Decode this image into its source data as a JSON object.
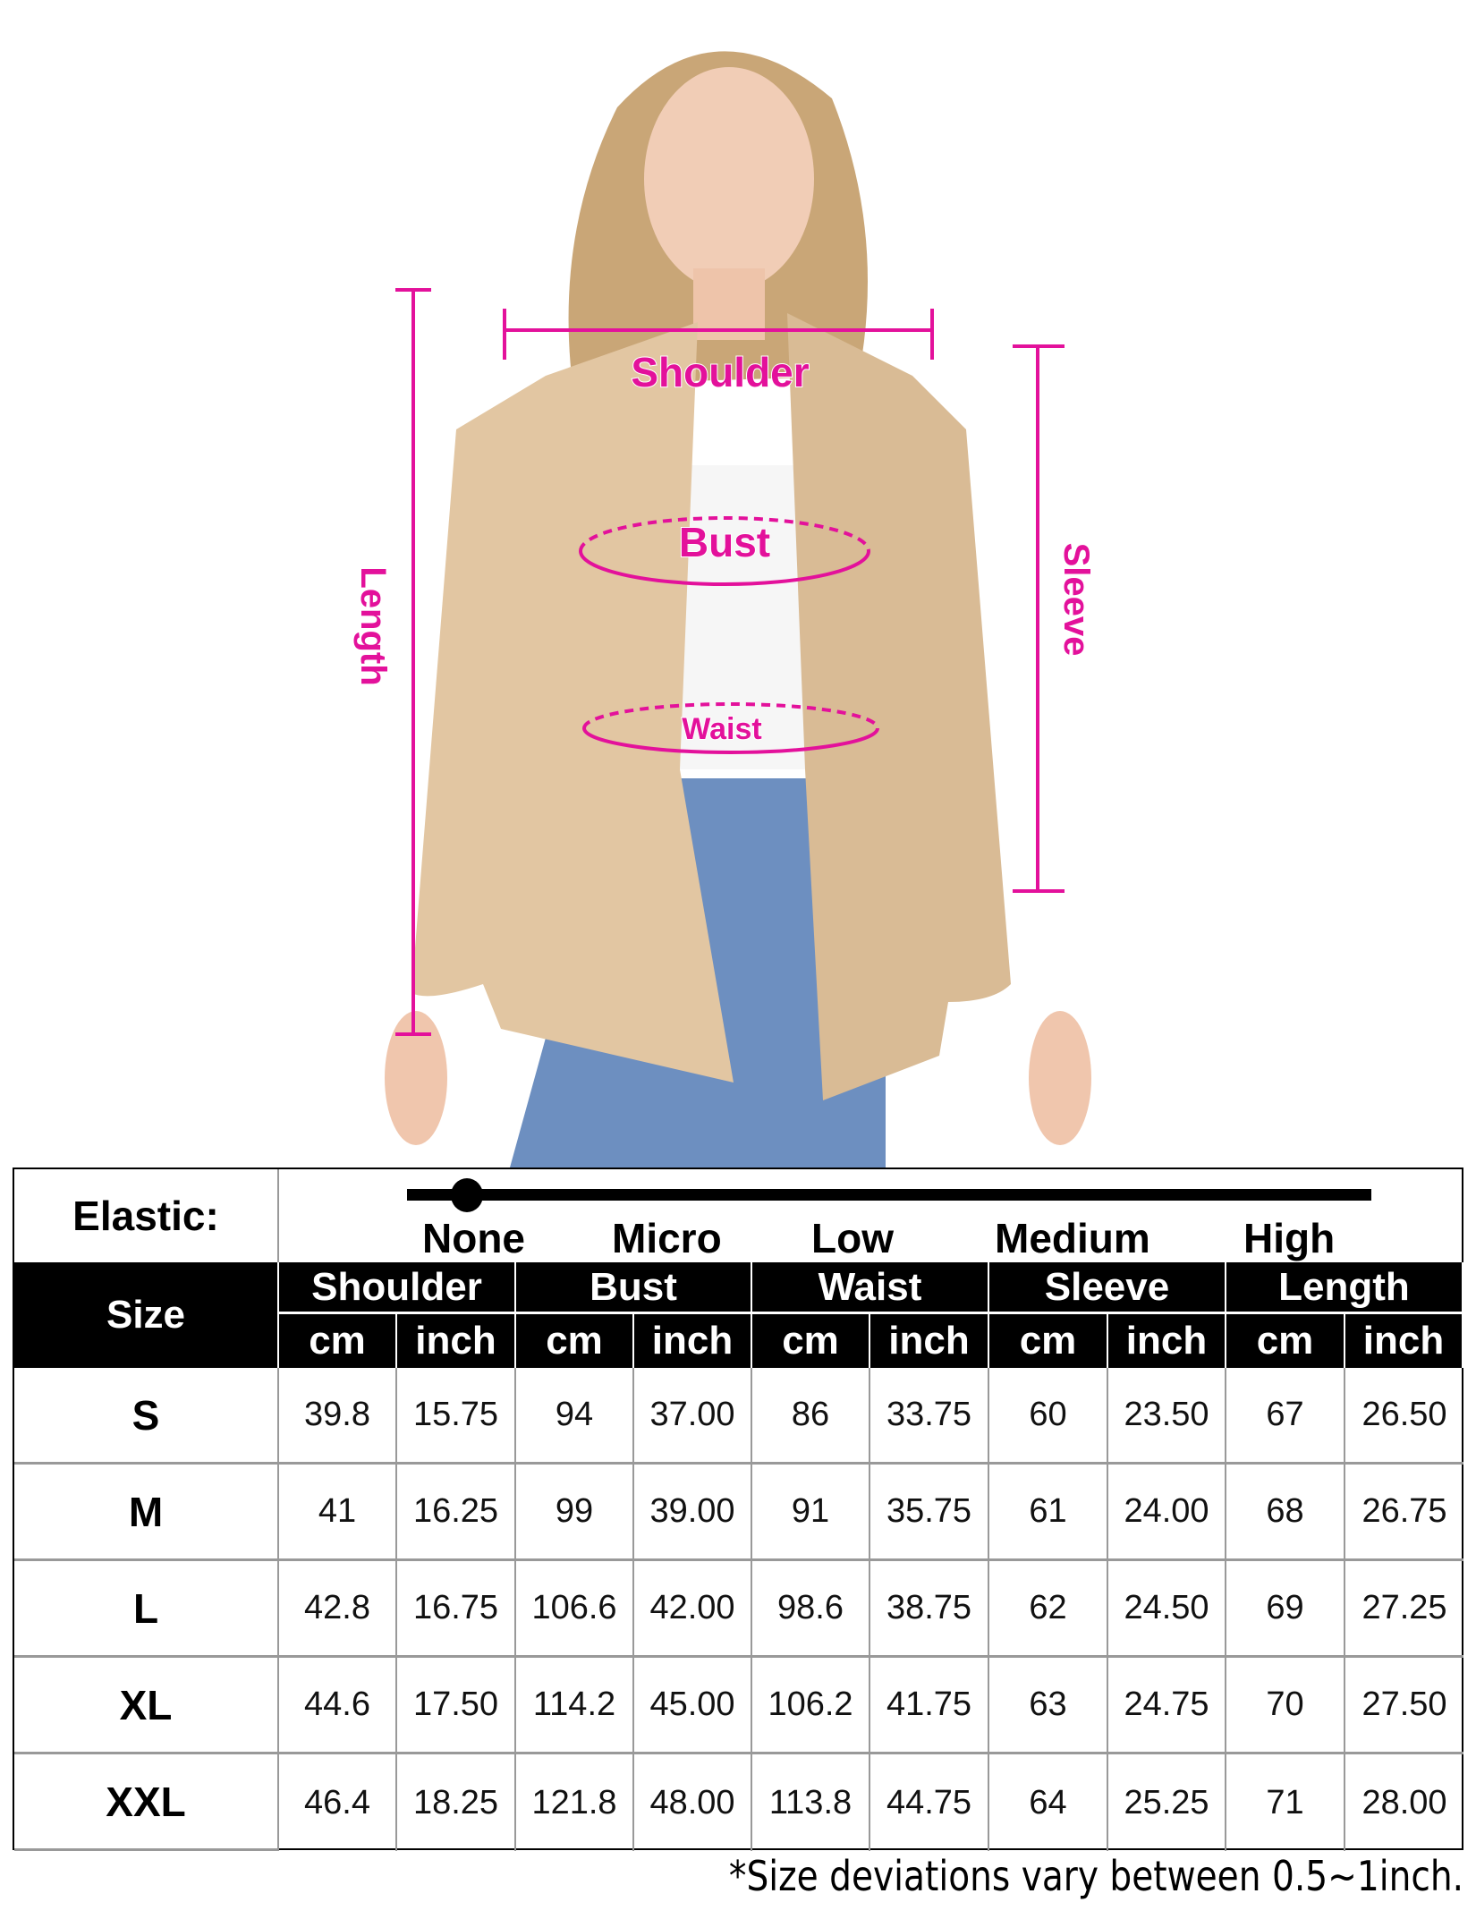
{
  "colors": {
    "measure": "#e3119b",
    "blazer": "#e2c6a2",
    "jeans": "#6d8fc0",
    "header_bg": "#000000"
  },
  "measure_labels": {
    "shoulder": "Shoulder",
    "bust": "Bust",
    "waist": "Waist",
    "length": "Length",
    "sleeve": "Sleeve"
  },
  "elastic": {
    "label": "Elastic:",
    "levels": [
      "None",
      "Micro",
      "Low",
      "Medium",
      "High"
    ],
    "selected": "None"
  },
  "table": {
    "size_header": "Size",
    "groups": [
      "Shoulder",
      "Bust",
      "Waist",
      "Sleeve",
      "Length"
    ],
    "units": [
      "cm",
      "inch"
    ],
    "rows": [
      {
        "size": "S",
        "values": [
          "39.8",
          "15.75",
          "94",
          "37.00",
          "86",
          "33.75",
          "60",
          "23.50",
          "67",
          "26.50"
        ]
      },
      {
        "size": "M",
        "values": [
          "41",
          "16.25",
          "99",
          "39.00",
          "91",
          "35.75",
          "61",
          "24.00",
          "68",
          "26.75"
        ]
      },
      {
        "size": "L",
        "values": [
          "42.8",
          "16.75",
          "106.6",
          "42.00",
          "98.6",
          "38.75",
          "62",
          "24.50",
          "69",
          "27.25"
        ]
      },
      {
        "size": "XL",
        "values": [
          "44.6",
          "17.50",
          "114.2",
          "45.00",
          "106.2",
          "41.75",
          "63",
          "24.75",
          "70",
          "27.50"
        ]
      },
      {
        "size": "XXL",
        "values": [
          "46.4",
          "18.25",
          "121.8",
          "48.00",
          "113.8",
          "44.75",
          "64",
          "25.25",
          "71",
          "28.00"
        ]
      }
    ]
  },
  "note": "*Size deviations vary between 0.5~1inch."
}
